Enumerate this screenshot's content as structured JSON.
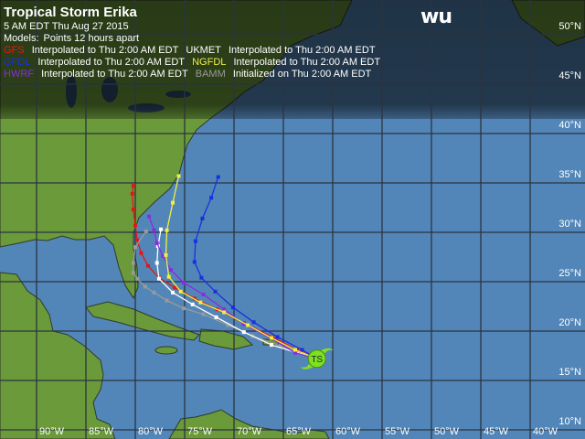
{
  "header": {
    "title": "Tropical Storm Erika",
    "datetime": "5 AM EDT Thu Aug 27 2015",
    "models_label": "Models:",
    "models_note": "Points 12 hours apart"
  },
  "legend": [
    {
      "model": "GFS",
      "color": "#e01818",
      "note": "Interpolated to Thu 2:00 AM EDT"
    },
    {
      "model": "UKMET",
      "color": "#ffffff",
      "note": "Interpolated to Thu 2:00 AM EDT"
    },
    {
      "model": "GFDL",
      "color": "#1a2fe0",
      "note": "Interpolated to Thu 2:00 AM EDT"
    },
    {
      "model": "NGFDL",
      "color": "#f0f040",
      "note": "Interpolated to Thu 2:00 AM EDT"
    },
    {
      "model": "HWRF",
      "color": "#8a2be2",
      "note": "Interpolated to Thu 2:00 AM EDT"
    },
    {
      "model": "BAMM",
      "color": "#9a9a9a",
      "note": "Initialized on Thu 2:00 AM EDT"
    }
  ],
  "logo": "wu",
  "storm": {
    "label": "TS",
    "lat": 17.2,
    "lon": -61.6,
    "color": "#7fe020"
  },
  "map": {
    "land_color": "#6b9a3a",
    "ocean_color": "#5386b8",
    "lon_labels": [
      "90°W",
      "85°W",
      "80°W",
      "75°W",
      "70°W",
      "65°W",
      "60°W",
      "55°W",
      "50°W",
      "45°W",
      "40°W"
    ],
    "lat_labels": [
      "50°N",
      "45°N",
      "40°N",
      "35°N",
      "30°N",
      "25°N",
      "20°N",
      "15°N",
      "10°N"
    ]
  },
  "tracks": [
    {
      "model": "GFS",
      "points": [
        [
          18.1,
          -63.6
        ],
        [
          19.4,
          -66.1
        ],
        [
          20.8,
          -69.0
        ],
        [
          22.2,
          -71.7
        ],
        [
          23.3,
          -74.0
        ],
        [
          24.4,
          -76.0
        ],
        [
          25.4,
          -77.6
        ],
        [
          26.6,
          -78.7
        ],
        [
          27.9,
          -79.4
        ],
        [
          29.2,
          -79.8
        ],
        [
          30.7,
          -80.0
        ],
        [
          32.3,
          -80.2
        ],
        [
          33.9,
          -80.3
        ],
        [
          34.7,
          -80.2
        ]
      ]
    },
    {
      "model": "BAMM",
      "points": [
        [
          18.5,
          -65.3
        ],
        [
          19.5,
          -68.1
        ],
        [
          20.6,
          -70.6
        ],
        [
          21.7,
          -73.1
        ],
        [
          22.3,
          -75.1
        ],
        [
          23.1,
          -76.8
        ],
        [
          23.9,
          -78.1
        ],
        [
          24.5,
          -79.0
        ],
        [
          25.3,
          -79.8
        ],
        [
          25.9,
          -80.2
        ],
        [
          26.9,
          -80.2
        ],
        [
          28.5,
          -80.0
        ],
        [
          30.1,
          -78.9
        ]
      ]
    },
    {
      "model": "UKMET",
      "points": [
        [
          18.6,
          -66.2
        ],
        [
          19.9,
          -69.0
        ],
        [
          21.4,
          -71.8
        ],
        [
          22.7,
          -74.2
        ],
        [
          23.9,
          -76.2
        ],
        [
          25.3,
          -77.6
        ],
        [
          26.9,
          -77.8
        ],
        [
          28.6,
          -77.7
        ],
        [
          30.3,
          -77.4
        ]
      ]
    },
    {
      "model": "HWRF",
      "points": [
        [
          17.8,
          -63.8
        ],
        [
          19.3,
          -66.3
        ],
        [
          20.7,
          -69.0
        ],
        [
          22.2,
          -71.0
        ],
        [
          23.7,
          -73.1
        ],
        [
          24.9,
          -75.1
        ],
        [
          26.2,
          -76.4
        ],
        [
          27.6,
          -77.2
        ],
        [
          28.9,
          -77.8
        ],
        [
          30.2,
          -78.1
        ],
        [
          31.6,
          -78.6
        ]
      ]
    },
    {
      "model": "NGFDL",
      "points": [
        [
          18.1,
          -63.8
        ],
        [
          19.3,
          -66.2
        ],
        [
          20.6,
          -68.6
        ],
        [
          21.9,
          -71.0
        ],
        [
          22.9,
          -73.4
        ],
        [
          24.0,
          -75.4
        ],
        [
          25.5,
          -76.6
        ],
        [
          27.7,
          -76.9
        ],
        [
          30.2,
          -76.8
        ],
        [
          33.0,
          -76.2
        ],
        [
          35.7,
          -75.6
        ]
      ]
    },
    {
      "model": "GFDL",
      "points": [
        [
          18.1,
          -63.1
        ],
        [
          19.4,
          -65.6
        ],
        [
          20.9,
          -68.0
        ],
        [
          22.4,
          -70.1
        ],
        [
          24.0,
          -71.9
        ],
        [
          25.4,
          -73.3
        ],
        [
          27.0,
          -74.0
        ],
        [
          29.1,
          -73.9
        ],
        [
          31.4,
          -73.2
        ],
        [
          33.5,
          -72.3
        ],
        [
          35.6,
          -71.6
        ]
      ]
    }
  ]
}
